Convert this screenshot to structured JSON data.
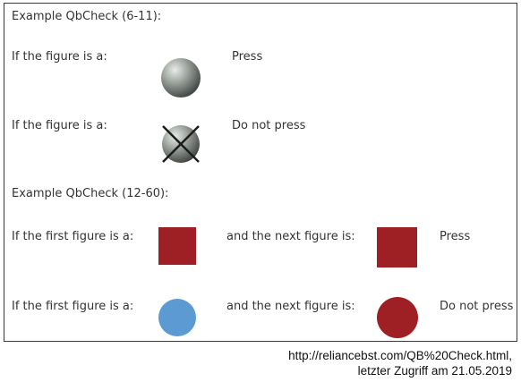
{
  "example1": {
    "title": "Example QbCheck (6-11):",
    "rows": [
      {
        "label": "If the figure is a:",
        "figure": "grey-sphere",
        "action": "Press"
      },
      {
        "label": "If the figure is a:",
        "figure": "grey-sphere-crossed",
        "action": "Do not press"
      }
    ]
  },
  "example2": {
    "title": "Example QbCheck (12-60):",
    "rows": [
      {
        "first_label": "If the first figure is a:",
        "first_figure": "red-square",
        "next_label": "and the next figure is:",
        "next_figure": "red-square",
        "action": "Press"
      },
      {
        "first_label": "If the first figure is a:",
        "first_figure": "blue-circle",
        "next_label": "and the next figure is:",
        "next_figure": "red-circle",
        "action": "Do not press"
      }
    ]
  },
  "colors": {
    "red": "#9e1f24",
    "blue": "#5b9bd2",
    "grey": "#7f8480"
  },
  "caption": {
    "line1": "http://reliancebst.com/QB%20Check.html,",
    "line2": "letzter Zugriff am 21.05.2019"
  }
}
